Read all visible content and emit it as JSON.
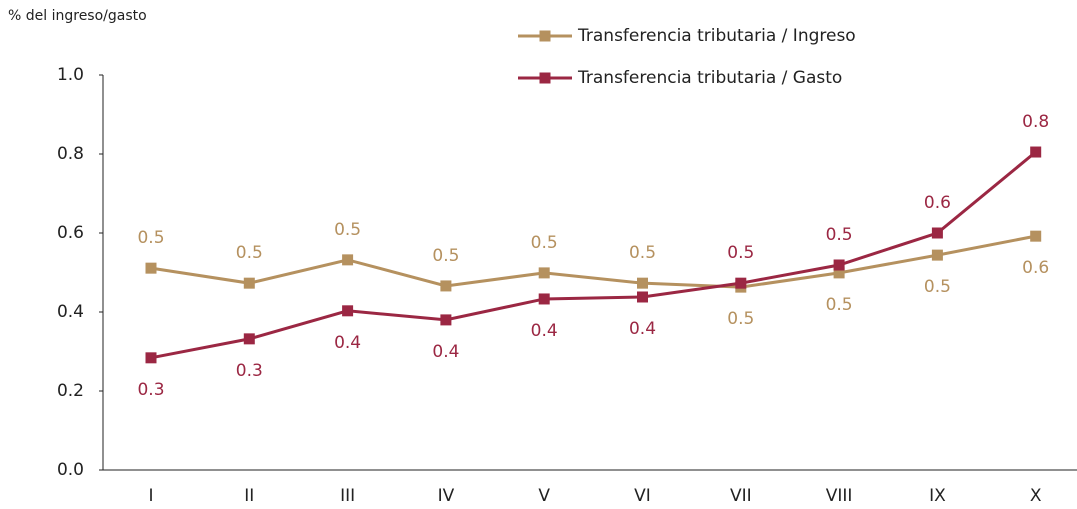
{
  "chart_data": {
    "type": "line",
    "y_label": "% del ingreso/gasto",
    "categories": [
      "I",
      "II",
      "III",
      "IV",
      "V",
      "VI",
      "VII",
      "VIII",
      "IX",
      "X"
    ],
    "series": [
      {
        "name": "Transferencia tributaria / Ingreso",
        "color": "#b5915f",
        "values": [
          0.511,
          0.473,
          0.532,
          0.466,
          0.499,
          0.473,
          0.463,
          0.499,
          0.544,
          0.592
        ],
        "value_labels": [
          "0.5",
          "0.5",
          "0.5",
          "0.5",
          "0.5",
          "0.5",
          "0.5",
          "0.5",
          "0.5",
          "0.6"
        ]
      },
      {
        "name": "Transferencia tributaria / Gasto",
        "color": "#9b2743",
        "values": [
          0.284,
          0.332,
          0.403,
          0.38,
          0.433,
          0.438,
          0.473,
          0.519,
          0.6,
          0.805
        ],
        "value_labels": [
          "0.3",
          "0.3",
          "0.4",
          "0.4",
          "0.4",
          "0.4",
          "0.5",
          "0.5",
          "0.6",
          "0.8"
        ]
      }
    ],
    "ylim": [
      0,
      1
    ],
    "yticks": [
      {
        "value": 0,
        "label": "0.0"
      },
      0.2,
      0.4,
      0.6,
      0.8,
      {
        "value": 1,
        "label": "1.0"
      }
    ],
    "grid": false,
    "legend": "top-right"
  }
}
